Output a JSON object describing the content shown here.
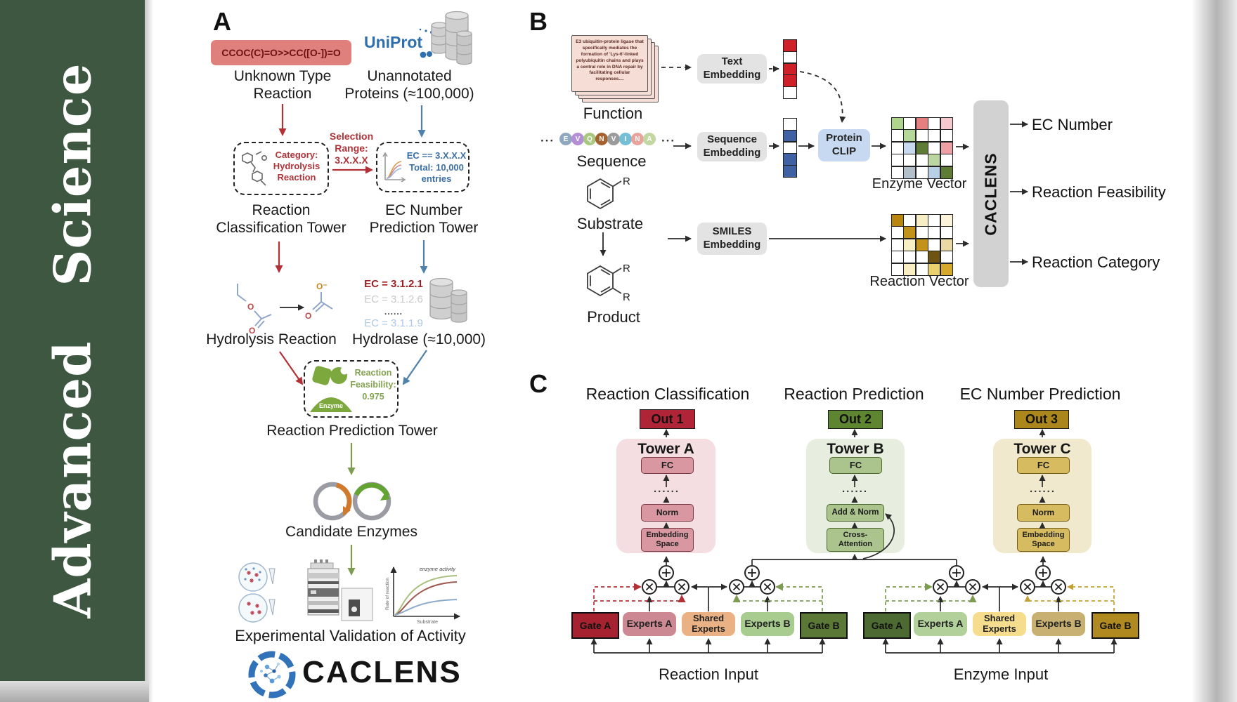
{
  "sidebar": {
    "title": "Advanced  Science"
  },
  "colors": {
    "sidebar_green": "#3d5741",
    "arrow_red": "#b23136",
    "arrow_blue": "#4f81ab",
    "arrow_green": "#7d9c51",
    "arrow_gold": "#c2a032",
    "smiles_box_bg": "#e0807c",
    "caclens_bar_bg": "#d2d2d2",
    "protein_clip_bg": "#c6d9f0",
    "tower_a_bg": "#f4dee2",
    "tower_b_bg": "#e8eedf",
    "tower_c_bg": "#f1e9cd",
    "out1_bg": "#b02437",
    "out2_bg": "#5e8530",
    "out3_bg": "#ab861c"
  },
  "panel_a": {
    "label": "A",
    "smiles_box": "CCOC(C)=O>>CC([O-])=O",
    "unknown_line1": "Unknown Type",
    "unknown_line2": "Reaction",
    "uniprot": "UniProt",
    "unann_line1": "Unannotated",
    "unann_line2": "Proteins (≈100,000)",
    "category_line1": "Category:",
    "category_line2": "Hydrolysis",
    "category_line3": "Reaction",
    "selection_line1": "Selection",
    "selection_line2": "Range:",
    "selection_line3": "3.X.X.X",
    "ec_line1": "EC == 3.X.X.X",
    "ec_line2": "Total: 10,000",
    "ec_line3": "entries",
    "tower1_line1": "Reaction",
    "tower1_line2": "Classification Tower",
    "tower2_line1": "EC Number",
    "tower2_line2": "Prediction Tower",
    "hydrolysis_label": "Hydrolysis Reaction",
    "ec_list": [
      "EC = 3.1.2.1",
      "EC = 3.1.2.6",
      "......",
      "EC = 3.1.1.9"
    ],
    "hydrolase_label": "Hydrolase (≈10,000)",
    "enzyme_icon_label": "Enzyme",
    "feasibility_line1": "Reaction",
    "feasibility_line2": "Feasibility:",
    "feasibility_line3": "0.975",
    "tower3_label": "Reaction Prediction Tower",
    "candidate_label": "Candidate Enzymes",
    "activity_plot": {
      "curve_label": "enzyme activity",
      "ylabel": "Rate of reaction",
      "xlabel": "Substrate"
    },
    "validation_label": "Experimental Validation of Activity",
    "logo_text": "CACLENS",
    "atoms": {
      "o": "O",
      "o_minus": "O⁻"
    }
  },
  "panel_b": {
    "label": "B",
    "function_card": "E3 ubiquitin-protein ligase that specifically mediates the formation of 'Lys-6'-linked polyubiquitin chains and plays a central role in DNA repair by facilitating cellular responses....",
    "function_label": "Function",
    "ellipsis": "···",
    "residues": [
      {
        "ch": "E",
        "color": "#8fa8bf"
      },
      {
        "ch": "V",
        "color": "#b48fd6"
      },
      {
        "ch": "Q",
        "color": "#a9c87f"
      },
      {
        "ch": "N",
        "color": "#a5612f"
      },
      {
        "ch": "V",
        "color": "#9b9b9b"
      },
      {
        "ch": "I",
        "color": "#74bfd4"
      },
      {
        "ch": "N",
        "color": "#e8a49c"
      },
      {
        "ch": "A",
        "color": "#c3d7a2"
      }
    ],
    "sequence_label": "Sequence",
    "substrate_label": "Substrate",
    "product_label": "Product",
    "r_group": "R",
    "text_embedding_l1": "Text",
    "text_embedding_l2": "Embedding",
    "sequence_embedding_l1": "Sequence",
    "sequence_embedding_l2": "Embedding",
    "smiles_embedding_l1": "SMILES",
    "smiles_embedding_l2": "Embedding",
    "protein_clip_l1": "Protein",
    "protein_clip_l2": "CLIP",
    "text_vector": [
      "#cf2027",
      "#ffffff",
      "#cf2027",
      "#cf2027",
      "#ffffff"
    ],
    "sequence_vector": [
      "#ffffff",
      "#3f62a5",
      "#ffffff",
      "#3f62a5",
      "#3f62a5"
    ],
    "enzyme_matrix": [
      [
        "#aed48e",
        "#ffffff",
        "#e4817f",
        "#ffffff",
        "#f6c9cf"
      ],
      [
        "#ffffff",
        "#b5d79a",
        "#ffffff",
        "#ffffff",
        "#ffffff"
      ],
      [
        "#ffffff",
        "#c6d9ee",
        "#5e7c35",
        "#ffffff",
        "#eda1a6"
      ],
      [
        "#ffffff",
        "#ffffff",
        "#ffffff",
        "#bcd6a2",
        "#ffffff"
      ],
      [
        "#ffffff",
        "#b3bfc9",
        "#ffffff",
        "#b9cfe6",
        "#5e7c35"
      ]
    ],
    "reaction_matrix": [
      [
        "#b8860f",
        "#ffffff",
        "#f7eec6",
        "#ffffff",
        "#fbf4da"
      ],
      [
        "#ffffff",
        "#c2921b",
        "#ffffff",
        "#ffffff",
        "#ffffff"
      ],
      [
        "#ffffff",
        "#f7eec6",
        "#c2921b",
        "#ffffff",
        "#ead9a4"
      ],
      [
        "#ffffff",
        "#ffffff",
        "#ffffff",
        "#6e5410",
        "#ffffff"
      ],
      [
        "#ffffff",
        "#f7eec6",
        "#ffffff",
        "#ead06e",
        "#d4a92c"
      ]
    ],
    "enzyme_vector_label": "Enzyme Vector",
    "reaction_vector_label": "Reaction Vector",
    "caclens_bar": "CACLENS",
    "outputs": [
      "EC Number",
      "Reaction Feasibility",
      "Reaction Category"
    ]
  },
  "panel_c": {
    "label": "C",
    "col_titles": [
      "Reaction Classification",
      "Reaction Prediction",
      "EC Number Prediction"
    ],
    "out_labels": [
      "Out 1",
      "Out 2",
      "Out 3"
    ],
    "towers": [
      {
        "name": "Tower A",
        "fc": "FC",
        "dots": "......",
        "mid": "Norm",
        "bottom_line1": "Embedding",
        "bottom_line2": "Space"
      },
      {
        "name": "Tower B",
        "fc": "FC",
        "dots": "......",
        "mid": "Add & Norm",
        "bottom_line1": "Cross-",
        "bottom_line2": "Attention"
      },
      {
        "name": "Tower C",
        "fc": "FC",
        "dots": "......",
        "mid": "Norm",
        "bottom_line1": "Embedding",
        "bottom_line2": "Space"
      }
    ],
    "moe_left": {
      "gate_a": "Gate A",
      "experts_a": "Experts A",
      "shared_line1": "Shared",
      "shared_line2": "Experts",
      "experts_b": "Experts B",
      "gate_b": "Gate B",
      "input": "Reaction Input"
    },
    "moe_right": {
      "gate_a": "Gate A",
      "experts_a": "Experts A",
      "shared_line1": "Shared",
      "shared_line2": "Experts",
      "experts_b": "Experts B",
      "gate_b": "Gate B",
      "input": "Enzyme Input"
    }
  }
}
